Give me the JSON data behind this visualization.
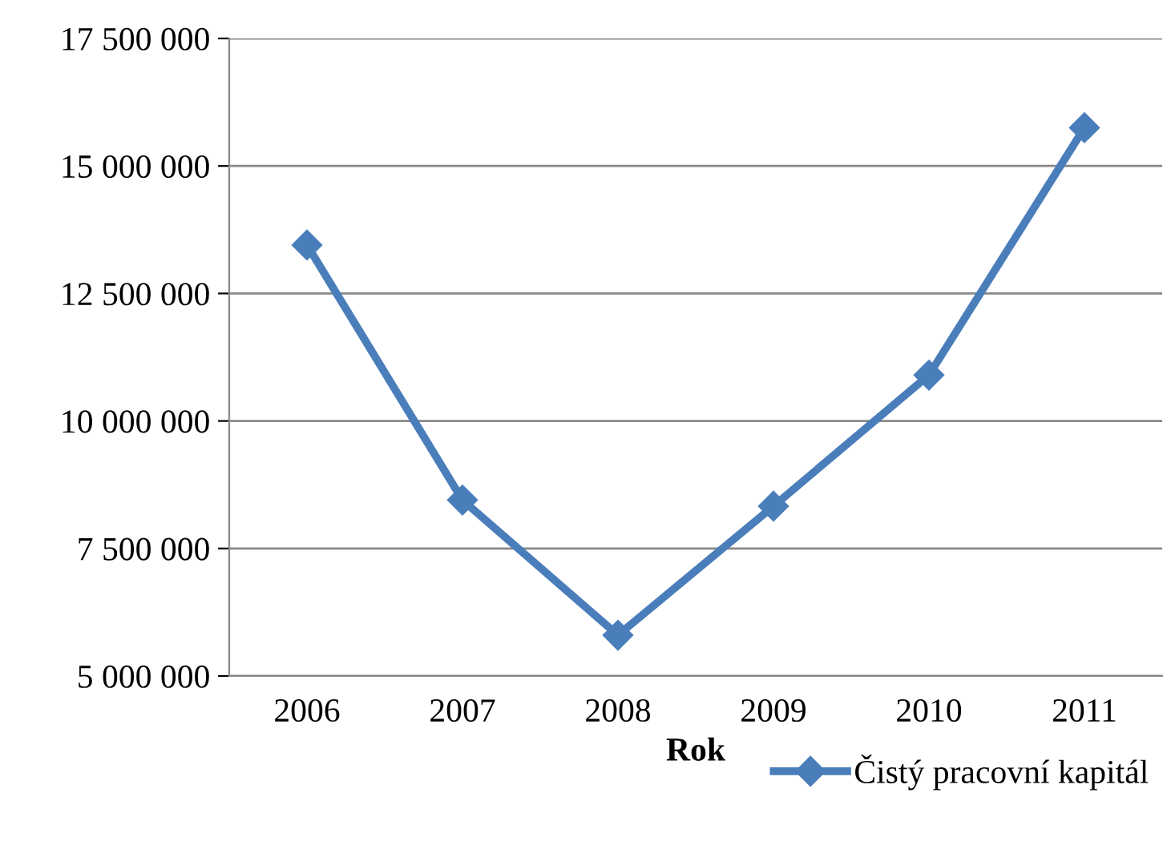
{
  "chart_data": {
    "type": "line",
    "xlabel": "Rok",
    "categories": [
      "2006",
      "2007",
      "2008",
      "2009",
      "2010",
      "2011"
    ],
    "series": [
      {
        "name": "Čistý pracovní kapitál",
        "color": "#4a7ebb",
        "values": [
          13450000,
          8450000,
          5800000,
          8330000,
          10900000,
          15750000
        ]
      }
    ],
    "ylim": [
      5000000,
      17500000
    ],
    "yticks": [
      {
        "value": 5000000,
        "label": "5 000 000"
      },
      {
        "value": 7500000,
        "label": "7 500 000"
      },
      {
        "value": 10000000,
        "label": "10 000 000"
      },
      {
        "value": 12500000,
        "label": "12 500 000"
      },
      {
        "value": 15000000,
        "label": "15 000 000"
      },
      {
        "value": 17500000,
        "label": "17 500 000"
      }
    ],
    "grid": "y",
    "legend": "bottom right",
    "marker": "diamond",
    "line_style": "solid"
  }
}
